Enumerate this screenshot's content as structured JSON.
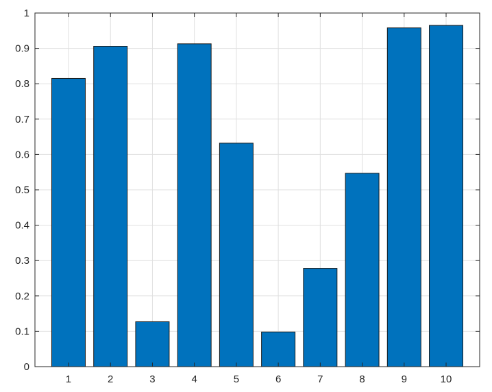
{
  "chart_data": {
    "type": "bar",
    "categories": [
      "1",
      "2",
      "3",
      "4",
      "5",
      "6",
      "7",
      "8",
      "9",
      "10"
    ],
    "values": [
      0.815,
      0.906,
      0.127,
      0.913,
      0.632,
      0.098,
      0.278,
      0.547,
      0.958,
      0.965
    ],
    "title": "",
    "xlabel": "",
    "ylabel": "",
    "ylim": [
      0,
      1
    ],
    "yticks": [
      "0",
      "0.1",
      "0.2",
      "0.3",
      "0.4",
      "0.5",
      "0.6",
      "0.7",
      "0.8",
      "0.9",
      "1"
    ],
    "grid": true,
    "bar_color": "#0072bd"
  }
}
